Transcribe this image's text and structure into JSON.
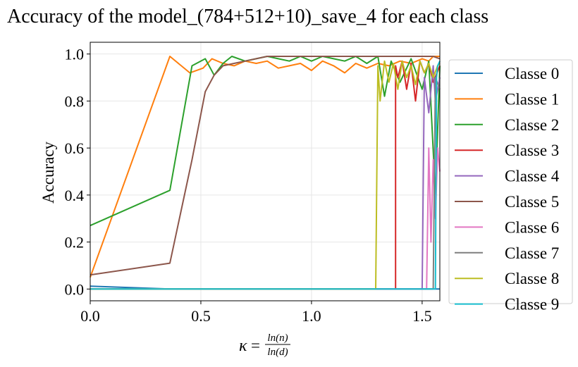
{
  "chart_data": {
    "type": "line",
    "title": "Accuracy of the model_(784+512+10)_save_4 for each class",
    "ylabel": "Accuracy",
    "xlabel": {
      "symbol": "κ",
      "equals": "=",
      "numerator": "ln(n)",
      "denominator": "ln(d)"
    },
    "xlim": [
      0.0,
      1.58
    ],
    "ylim": [
      -0.05,
      1.05
    ],
    "xticks": [
      0.0,
      0.5,
      1.0,
      1.5
    ],
    "xtick_labels": [
      "0.0",
      "0.5",
      "1.0",
      "1.5"
    ],
    "yticks": [
      0.0,
      0.2,
      0.4,
      0.6,
      0.8,
      1.0
    ],
    "ytick_labels": [
      "0.0",
      "0.2",
      "0.4",
      "0.6",
      "0.8",
      "1.0"
    ],
    "grid": true,
    "legend_position": "outside-right",
    "series": [
      {
        "name": "Classe 0",
        "color": "#1f77b4",
        "x": [
          0.0,
          0.36,
          0.9,
          1.3,
          1.53,
          1.56,
          1.58
        ],
        "y": [
          0.012,
          0.0,
          0.0,
          0.0,
          0.0,
          0.0,
          0.0
        ]
      },
      {
        "name": "Classe 1",
        "color": "#ff7f0e",
        "x": [
          0.0,
          0.36,
          0.45,
          0.51,
          0.55,
          0.6,
          0.65,
          0.7,
          0.75,
          0.8,
          0.85,
          0.9,
          0.95,
          1.0,
          1.05,
          1.1,
          1.15,
          1.2,
          1.25,
          1.3,
          1.35,
          1.4,
          1.45,
          1.5,
          1.53,
          1.55,
          1.58
        ],
        "y": [
          0.05,
          0.99,
          0.92,
          0.94,
          0.98,
          0.96,
          0.95,
          0.97,
          0.96,
          0.97,
          0.94,
          0.95,
          0.96,
          0.93,
          0.97,
          0.95,
          0.92,
          0.96,
          0.94,
          0.96,
          0.95,
          0.97,
          0.96,
          0.98,
          0.97,
          0.99,
          0.99
        ]
      },
      {
        "name": "Classe 2",
        "color": "#2ca02c",
        "x": [
          0.0,
          0.36,
          0.46,
          0.52,
          0.56,
          0.6,
          0.64,
          0.7,
          0.75,
          0.8,
          0.85,
          0.9,
          0.95,
          1.0,
          1.05,
          1.1,
          1.15,
          1.2,
          1.25,
          1.3,
          1.33,
          1.36,
          1.4,
          1.45,
          1.5,
          1.53,
          1.56,
          1.58
        ],
        "y": [
          0.27,
          0.42,
          0.95,
          0.98,
          0.91,
          0.96,
          0.99,
          0.97,
          0.98,
          0.99,
          0.98,
          0.97,
          0.99,
          0.97,
          0.99,
          0.98,
          0.97,
          0.99,
          0.96,
          0.99,
          0.82,
          0.97,
          0.88,
          0.98,
          0.85,
          0.97,
          0.4,
          0.95
        ]
      },
      {
        "name": "Classe 3",
        "color": "#d62728",
        "x": [
          0.0,
          0.36,
          1.0,
          1.38,
          1.38,
          1.39,
          1.41,
          1.43,
          1.45,
          1.47,
          1.49,
          1.51,
          1.53,
          1.55,
          1.58
        ],
        "y": [
          0.0,
          0.0,
          0.0,
          0.0,
          0.95,
          0.9,
          0.97,
          0.85,
          0.96,
          0.8,
          0.97,
          0.92,
          0.96,
          0.88,
          0.95
        ]
      },
      {
        "name": "Classe 4",
        "color": "#9467bd",
        "x": [
          0.0,
          0.36,
          1.0,
          1.5,
          1.51,
          1.53,
          1.55,
          1.56,
          1.58
        ],
        "y": [
          0.0,
          0.0,
          0.0,
          0.0,
          0.9,
          0.75,
          0.95,
          0.8,
          0.9
        ]
      },
      {
        "name": "Classe 5",
        "color": "#8c564b",
        "x": [
          0.0,
          0.36,
          0.46,
          0.52,
          0.56,
          0.6,
          0.65,
          0.7,
          0.8,
          0.9,
          1.0,
          1.1,
          1.2,
          1.3,
          1.4,
          1.5,
          1.55,
          1.58
        ],
        "y": [
          0.06,
          0.11,
          0.55,
          0.84,
          0.91,
          0.95,
          0.96,
          0.97,
          0.99,
          0.99,
          0.99,
          0.99,
          0.99,
          0.99,
          0.99,
          0.99,
          0.99,
          0.98
        ]
      },
      {
        "name": "Classe 6",
        "color": "#e377c2",
        "x": [
          0.0,
          0.36,
          1.0,
          1.52,
          1.53,
          1.54,
          1.55,
          1.56,
          1.57,
          1.58
        ],
        "y": [
          0.0,
          0.0,
          0.0,
          0.0,
          0.6,
          0.2,
          0.55,
          0.3,
          0.6,
          0.5
        ]
      },
      {
        "name": "Classe 7",
        "color": "#7f7f7f",
        "x": [
          0.0,
          0.36,
          1.0,
          1.55,
          1.56,
          1.58
        ],
        "y": [
          0.0,
          0.0,
          0.0,
          0.0,
          0.9,
          0.85
        ]
      },
      {
        "name": "Classe 8",
        "color": "#bcbd22",
        "x": [
          0.0,
          0.36,
          1.0,
          1.29,
          1.3,
          1.31,
          1.33,
          1.35,
          1.37,
          1.39,
          1.41,
          1.43,
          1.45,
          1.47,
          1.49,
          1.51,
          1.53,
          1.55,
          1.57,
          1.58
        ],
        "y": [
          0.0,
          0.0,
          0.0,
          0.0,
          0.95,
          0.8,
          0.97,
          0.88,
          0.96,
          0.85,
          0.97,
          0.9,
          0.95,
          0.87,
          0.97,
          0.92,
          0.96,
          0.9,
          0.95,
          0.96
        ]
      },
      {
        "name": "Classe 9",
        "color": "#17becf",
        "x": [
          0.0,
          0.36,
          1.0,
          1.56,
          1.565,
          1.57,
          1.58
        ],
        "y": [
          0.0,
          0.0,
          0.0,
          0.0,
          0.9,
          0.95,
          0.97
        ]
      }
    ]
  }
}
